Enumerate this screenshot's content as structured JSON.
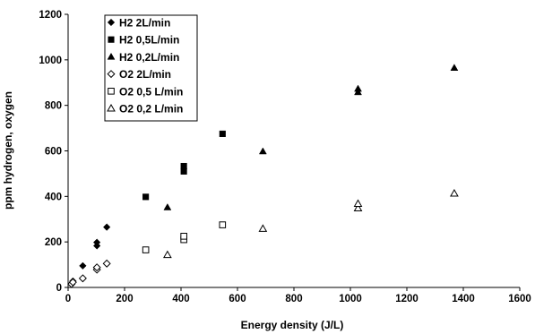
{
  "chart_data": {
    "type": "scatter",
    "xlabel": "Energy density (J/L)",
    "ylabel": "ppm hydrogen, oxygen",
    "xlim": [
      0,
      1600
    ],
    "ylim": [
      0,
      1200
    ],
    "xticks": [
      0,
      200,
      400,
      600,
      800,
      1000,
      1200,
      1400,
      1600
    ],
    "yticks": [
      0,
      200,
      400,
      600,
      800,
      1000,
      1200
    ],
    "grid": false,
    "legend_position": "top-left",
    "series": [
      {
        "name": "H2 2L/min",
        "marker": "diamond",
        "filled": true,
        "points": [
          [
            17,
            28
          ],
          [
            52,
            95
          ],
          [
            102,
            183
          ],
          [
            102,
            198
          ],
          [
            137,
            265
          ]
        ]
      },
      {
        "name": "H2 0,5L/min",
        "marker": "square",
        "filled": true,
        "points": [
          [
            275,
            398
          ],
          [
            410,
            510
          ],
          [
            410,
            533
          ],
          [
            547,
            675
          ]
        ]
      },
      {
        "name": "H2 0,2L/min",
        "marker": "triangle",
        "filled": true,
        "points": [
          [
            352,
            352
          ],
          [
            690,
            598
          ],
          [
            1027,
            858
          ],
          [
            1027,
            873
          ],
          [
            1368,
            965
          ]
        ]
      },
      {
        "name": "O2 2L/min",
        "marker": "diamond",
        "filled": false,
        "points": [
          [
            12,
            15
          ],
          [
            17,
            23
          ],
          [
            52,
            40
          ],
          [
            102,
            78
          ],
          [
            102,
            88
          ],
          [
            137,
            105
          ]
        ]
      },
      {
        "name": "O2 0,5 L/min",
        "marker": "square",
        "filled": false,
        "points": [
          [
            275,
            165
          ],
          [
            410,
            210
          ],
          [
            410,
            225
          ],
          [
            547,
            275
          ]
        ]
      },
      {
        "name": "O2 0,2 L/min",
        "marker": "triangle",
        "filled": false,
        "points": [
          [
            352,
            143
          ],
          [
            690,
            258
          ],
          [
            1027,
            348
          ],
          [
            1027,
            368
          ],
          [
            1368,
            413
          ]
        ]
      }
    ]
  }
}
